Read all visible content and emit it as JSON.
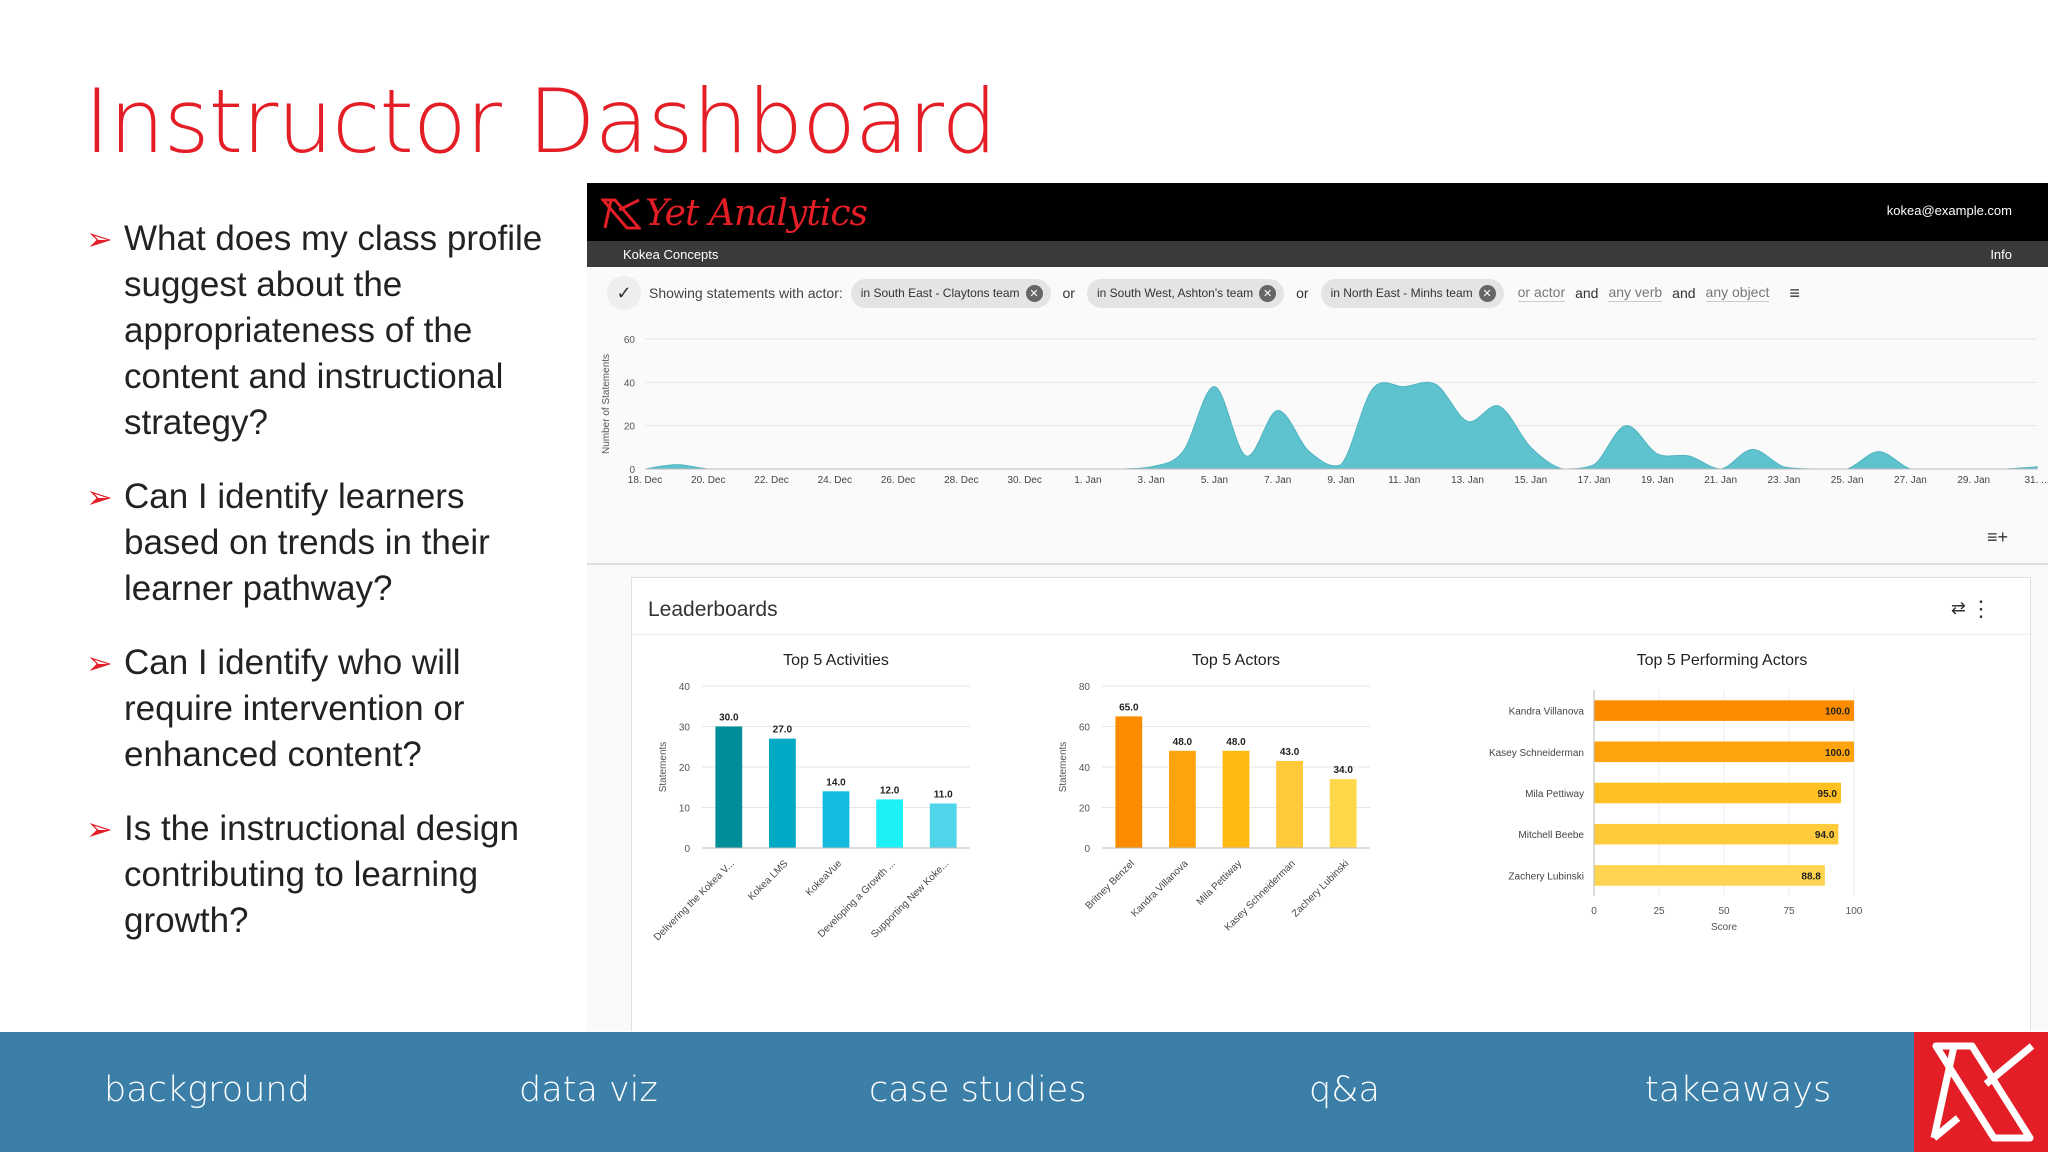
{
  "slide": {
    "title": "Instructor Dashboard",
    "questions": [
      "What does my class profile suggest about the appropriateness of the content and instructional strategy?",
      "Can I identify learners based on trends in their learner pathway?",
      "Can I identify who will require intervention or enhanced content?",
      "Is the instructional design contributing to learning growth?"
    ]
  },
  "dashboard": {
    "brand": "Yet Analytics",
    "user_email": "kokea@example.com",
    "project": "Kokea Concepts",
    "info": "Info",
    "filter": {
      "prefix": "Showing statements with actor:",
      "chips": [
        "in South East - Claytons team",
        "in South West, Ashton's team",
        "in North East - Minhs team"
      ],
      "or": "or",
      "or_actor": "or actor",
      "and": "and",
      "any_verb": "any verb",
      "any_object": "any object"
    },
    "leaderboards_title": "Leaderboards"
  },
  "chart_data": [
    {
      "type": "area",
      "title": "",
      "ylabel": "Number of Statements",
      "ylim": [
        0,
        60
      ],
      "yticks": [
        0,
        20,
        40,
        60
      ],
      "x_ticks": [
        "18. Dec",
        "20. Dec",
        "22. Dec",
        "24. Dec",
        "26. Dec",
        "28. Dec",
        "30. Dec",
        "1. Jan",
        "3. Jan",
        "5. Jan",
        "7. Jan",
        "9. Jan",
        "11. Jan",
        "13. Jan",
        "15. Jan",
        "17. Jan",
        "19. Jan",
        "21. Jan",
        "23. Jan",
        "25. Jan",
        "27. Jan",
        "29. Jan",
        "31. ..."
      ],
      "day_index": [
        0,
        1,
        2,
        3,
        4,
        5,
        6,
        7,
        8,
        9,
        10,
        11,
        12,
        13,
        14,
        15,
        16,
        17,
        18,
        19,
        20,
        21,
        22,
        23,
        24,
        25,
        26,
        27,
        28,
        29,
        30,
        31,
        32,
        33,
        34,
        35,
        36,
        37,
        38,
        39,
        40,
        41,
        42,
        43,
        44
      ],
      "values": [
        0,
        2,
        0,
        0,
        0,
        0,
        0,
        0,
        0,
        0,
        0,
        0,
        0,
        0,
        0,
        0,
        1,
        8,
        38,
        6,
        27,
        8,
        2,
        37,
        38,
        39,
        22,
        29,
        10,
        0,
        2,
        20,
        7,
        6,
        0,
        9,
        1,
        0,
        0,
        8,
        0,
        0,
        0,
        0,
        1
      ]
    },
    {
      "type": "bar",
      "title": "Top 5 Activities",
      "ylabel": "Statements",
      "ylim": [
        0,
        40
      ],
      "yticks": [
        0,
        10,
        20,
        30,
        40
      ],
      "categories": [
        "Delivering the Kokea V...",
        "Kokea LMS",
        "KokeaVue",
        "Developing a Growth ...",
        "Supporting New Koke..."
      ],
      "values": [
        30.0,
        27.0,
        14.0,
        12.0,
        11.0
      ],
      "labels": [
        "30.0",
        "27.0",
        "14.0",
        "12.0",
        "11.0"
      ],
      "colors": [
        "#008e98",
        "#00a9c4",
        "#14bde0",
        "#1ef0f8",
        "#4fd5ea"
      ]
    },
    {
      "type": "bar",
      "title": "Top 5 Actors",
      "ylabel": "Statements",
      "ylim": [
        0,
        80
      ],
      "yticks": [
        0,
        20,
        40,
        60,
        80
      ],
      "categories": [
        "Britney Benzel",
        "Kandra Villanova",
        "Mila Pettiway",
        "Kasey Schneiderman",
        "Zachery Lubinski"
      ],
      "values": [
        65.0,
        48.0,
        48.0,
        43.0,
        34.0
      ],
      "labels": [
        "65.0",
        "48.0",
        "48.0",
        "43.0",
        "34.0"
      ],
      "colors": [
        "#fb8c00",
        "#ffa40c",
        "#ffb912",
        "#ffc93a",
        "#ffd84a"
      ]
    },
    {
      "type": "bar",
      "orientation": "horizontal",
      "title": "Top 5 Performing Actors",
      "xlabel": "Score",
      "xlim": [
        0,
        100
      ],
      "xticks": [
        0,
        25,
        50,
        75,
        100
      ],
      "categories": [
        "Kandra Villanova",
        "Kasey Schneiderman",
        "Mila Pettiway",
        "Mitchell Beebe",
        "Zachery Lubinski"
      ],
      "values": [
        100.0,
        100.0,
        95.0,
        94.0,
        88.8
      ],
      "labels": [
        "100.0",
        "100.0",
        "95.0",
        "94.0",
        "88.8"
      ],
      "colors": [
        "#fb8c00",
        "#ffa40c",
        "#ffc121",
        "#ffcb3c",
        "#ffd451"
      ]
    }
  ],
  "footer": {
    "nav": [
      "background",
      "data viz",
      "case studies",
      "q&a",
      "takeaways"
    ]
  },
  "colors": {
    "accent": "#e41e26",
    "footer": "#3b7fa8",
    "teal": "#5fc2cf"
  }
}
